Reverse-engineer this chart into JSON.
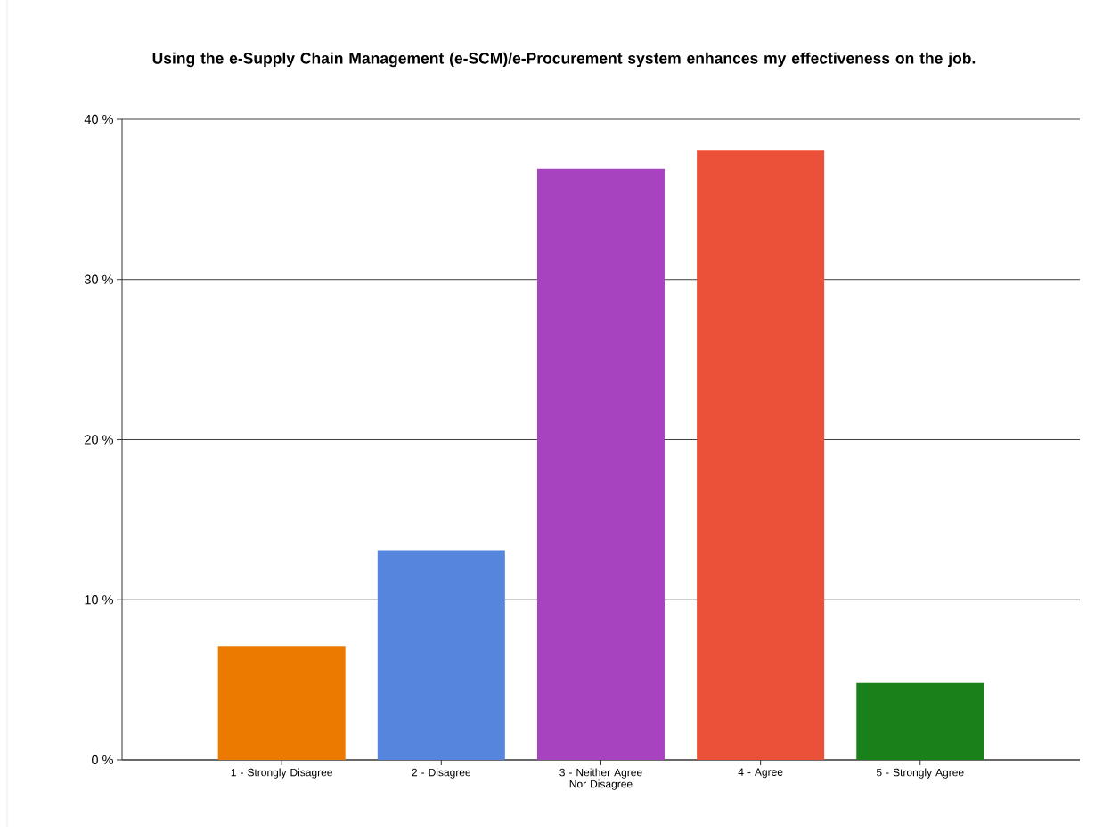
{
  "chart_data": {
    "type": "bar",
    "title": "Using the e-Supply Chain Management (e-SCM)/e-Procurement system enhances my effectiveness on the job.",
    "categories": [
      "1 - Strongly Disagree",
      "2 - Disagree",
      "3 - Neither Agree Nor Disagree",
      "4 - Agree",
      "5 - Strongly Agree"
    ],
    "values": [
      7.1,
      13.1,
      36.9,
      38.1,
      4.8
    ],
    "colors": [
      "#ec7a00",
      "#5585dc",
      "#a843c0",
      "#eb5038",
      "#1a801a"
    ],
    "ylim": [
      0,
      40
    ],
    "yticks": [
      {
        "value": 0,
        "label": "0 %"
      },
      {
        "value": 10,
        "label": "10 %"
      },
      {
        "value": 20,
        "label": "20 %"
      },
      {
        "value": 30,
        "label": "30 %"
      },
      {
        "value": 40,
        "label": "40 %"
      }
    ],
    "grid": "y"
  }
}
